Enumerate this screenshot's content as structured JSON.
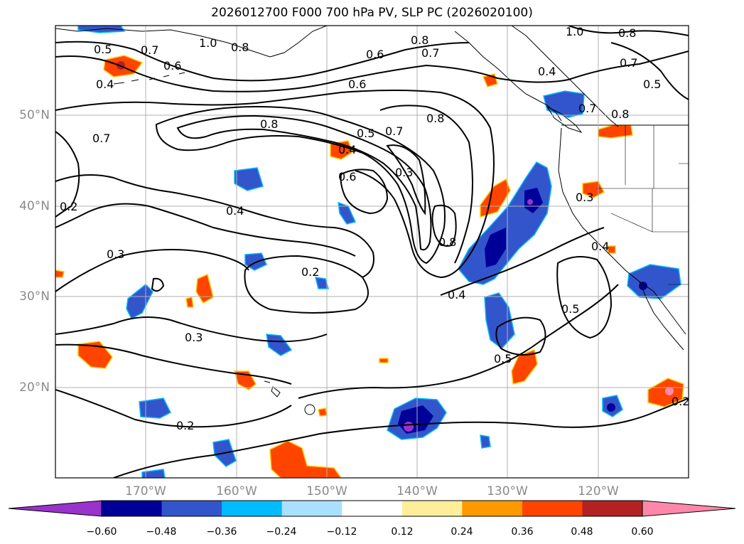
{
  "title": "2026012700 F000 700 hPa PV, SLP PC (2026020100)",
  "lat_labels": [
    "50°N",
    "40°N",
    "30°N",
    "20°N"
  ],
  "lon_labels": [
    "170°W",
    "160°W",
    "150°W",
    "140°W",
    "130°W",
    "120°W"
  ],
  "contour_labels": [
    "0.5",
    "0.7",
    "1.0",
    "0.8",
    "0.6",
    "0.4",
    "0.6",
    "0.8",
    "0.6",
    "0.7",
    "1.0",
    "0.8",
    "0.4",
    "0.5",
    "0.7",
    "0.8",
    "0.7",
    "0.7",
    "0.8",
    "0.5",
    "0.7",
    "0.8",
    "0.4",
    "0.6",
    "0.3",
    "0.8",
    "0.4",
    "0.3",
    "0.2",
    "0.4",
    "0.5",
    "0.3",
    "0.4",
    "0.3",
    "0.5",
    "0.2",
    "0.2",
    "0.2"
  ],
  "colorbar": {
    "ticks": [
      "−0.60",
      "−0.48",
      "−0.36",
      "−0.24",
      "−0.12",
      "0.12",
      "0.24",
      "0.36",
      "0.48",
      "0.60"
    ],
    "colors": [
      "#9933cc",
      "#000099",
      "#3355cc",
      "#00bbff",
      "#aae0ff",
      "#ffffff",
      "#ffee99",
      "#ff9900",
      "#ff4400",
      "#b22222",
      "#ff88aa"
    ]
  },
  "colors": {
    "coast": "#000000",
    "grid": "#b0b0b0",
    "contour": "#000000"
  }
}
